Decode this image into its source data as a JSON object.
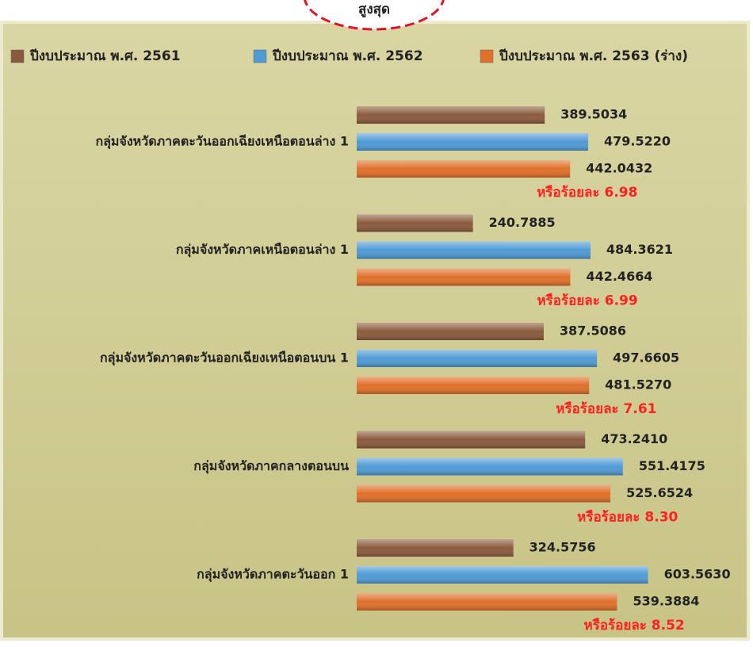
{
  "chart_data": {
    "type": "bar",
    "orientation": "horizontal",
    "callout": "สูงสุด",
    "categories": [
      "กลุ่มจังหวัดภาคตะวันออกเฉียงเหนือตอนล่าง 1",
      "กลุ่มจังหวัดภาคเหนือตอนล่าง 1",
      "กลุ่มจังหวัดภาคตะวันออกเฉียงเหนือตอนบน 1",
      "กลุ่มจังหวัดภาคกลางตอนบน",
      "กลุ่มจังหวัดภาคตะวันออก 1"
    ],
    "series": [
      {
        "name": "ปีงบประมาณ พ.ศ. 2561",
        "color": "#8b5a3c",
        "values": [
          389.5034,
          240.7885,
          387.5086,
          473.241,
          324.5756
        ],
        "value_labels": [
          "389.5034",
          "240.7885",
          "387.5086",
          "473.2410",
          "324.5756"
        ]
      },
      {
        "name": "ปีงบประมาณ พ.ศ. 2562",
        "color": "#4f9bd6",
        "values": [
          479.522,
          484.3621,
          497.6605,
          551.4175,
          603.563
        ],
        "value_labels": [
          "479.5220",
          "484.3621",
          "497.6605",
          "551.4175",
          "603.5630"
        ]
      },
      {
        "name": "ปีงบประมาณ พ.ศ. 2563 (ร่าง)",
        "color": "#e0702a",
        "values": [
          442.0432,
          442.4664,
          481.527,
          525.6524,
          539.3884
        ],
        "value_labels": [
          "442.0432",
          "442.4664",
          "481.5270",
          "525.6524",
          "539.3884"
        ]
      }
    ],
    "annotations": [
      "หรือร้อยละ 6.98",
      "หรือร้อยละ 6.99",
      "หรือร้อยละ 7.61",
      "หรือร้อยละ 8.30",
      "หรือร้อยละ 8.52"
    ],
    "annotation_color": "#ff2020",
    "legend": "top"
  }
}
